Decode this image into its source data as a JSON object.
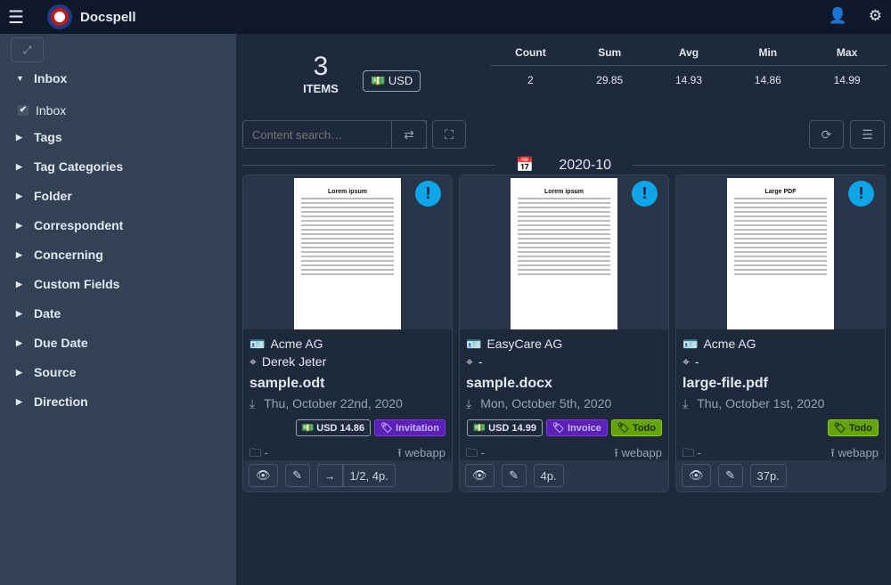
{
  "app": {
    "title": "Docspell"
  },
  "sidebar": {
    "items": [
      {
        "label": "Inbox",
        "expanded": true
      },
      {
        "label": "Tags"
      },
      {
        "label": "Tag Categories"
      },
      {
        "label": "Folder"
      },
      {
        "label": "Correspondent"
      },
      {
        "label": "Concerning"
      },
      {
        "label": "Custom Fields"
      },
      {
        "label": "Date"
      },
      {
        "label": "Due Date"
      },
      {
        "label": "Source"
      },
      {
        "label": "Direction"
      }
    ],
    "inbox_checkbox": {
      "label": "Inbox",
      "checked": true
    }
  },
  "summary": {
    "count": "3",
    "items_label": "ITEMS",
    "currency": "USD",
    "headers": [
      "Count",
      "Sum",
      "Avg",
      "Min",
      "Max"
    ],
    "values": [
      "2",
      "29.85",
      "14.93",
      "14.86",
      "14.99"
    ]
  },
  "search": {
    "placeholder": "Content search…"
  },
  "group": {
    "label": "2020-10"
  },
  "cards": [
    {
      "correspondent": "Acme AG",
      "concerning": "Derek Jeter",
      "name": "sample.odt",
      "date": "Thu, October 22nd, 2020",
      "amount": "USD  14.86",
      "tags": [
        {
          "label": "Invitation",
          "color": "violet"
        }
      ],
      "folder": "-",
      "source": "webapp",
      "pages": "1/2, 4p.",
      "preview_title": "Lorem ipsum"
    },
    {
      "correspondent": "EasyCare AG",
      "concerning": "-",
      "name": "sample.docx",
      "date": "Mon, October 5th, 2020",
      "amount": "USD  14.99",
      "tags": [
        {
          "label": "Invoice",
          "color": "violet"
        },
        {
          "label": "Todo",
          "color": "green"
        }
      ],
      "folder": "-",
      "source": "webapp",
      "pages": "4p.",
      "preview_title": "Lorem ipsum"
    },
    {
      "correspondent": "Acme AG",
      "concerning": "-",
      "name": "large-file.pdf",
      "date": "Thu, October 1st, 2020",
      "tags": [
        {
          "label": "Todo",
          "color": "green"
        }
      ],
      "folder": "-",
      "source": "webapp",
      "pages": "37p.",
      "preview_title": "Large PDF"
    }
  ],
  "colors": {
    "header": "#0f172a",
    "sidebar": "#334155",
    "main": "#1e293b",
    "accent": "#0ea5e9",
    "tag_violet": "#5b21b6",
    "tag_green": "#65a30d"
  }
}
